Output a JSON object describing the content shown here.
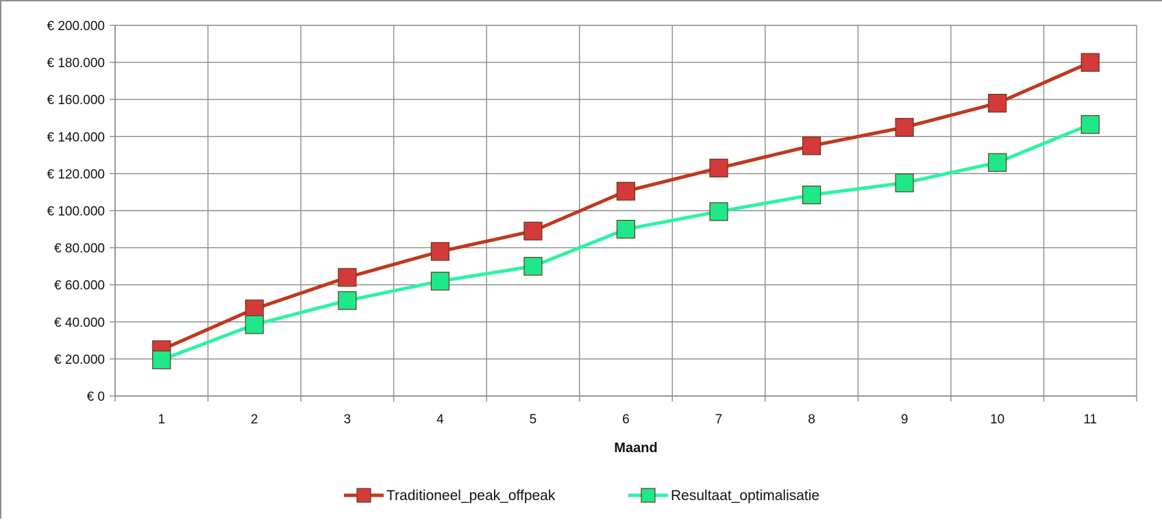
{
  "chart_data": {
    "type": "line",
    "title": "",
    "xlabel": "Maand",
    "ylabel": "",
    "x": [
      "1",
      "2",
      "3",
      "4",
      "5",
      "6",
      "7",
      "8",
      "9",
      "10",
      "11"
    ],
    "ylim": [
      0,
      200000
    ],
    "y_ticks": [
      0,
      20000,
      40000,
      60000,
      80000,
      100000,
      120000,
      140000,
      160000,
      180000,
      200000
    ],
    "y_tick_labels": [
      "€ 0",
      "€ 20.000",
      "€ 40.000",
      "€ 60.000",
      "€ 80.000",
      "€ 100.000",
      "€ 120.000",
      "€ 140.000",
      "€ 160.000",
      "€ 180.000",
      "€ 200.000"
    ],
    "grid": "on",
    "legend_position": "bottom",
    "series": [
      {
        "name": "Traditioneel_peak_offpeak",
        "color": "#c0391b",
        "marker_color": "#d43a3a",
        "values": [
          25000,
          47000,
          64000,
          78000,
          89000,
          110500,
          123000,
          135000,
          145000,
          158000,
          180000
        ]
      },
      {
        "name": "Resultaat_optimalisatie",
        "color": "#2ef2a4",
        "marker_color": "#1fe88a",
        "values": [
          19500,
          38500,
          51500,
          62000,
          70000,
          90000,
          99500,
          108500,
          115000,
          126000,
          146500
        ]
      }
    ]
  }
}
